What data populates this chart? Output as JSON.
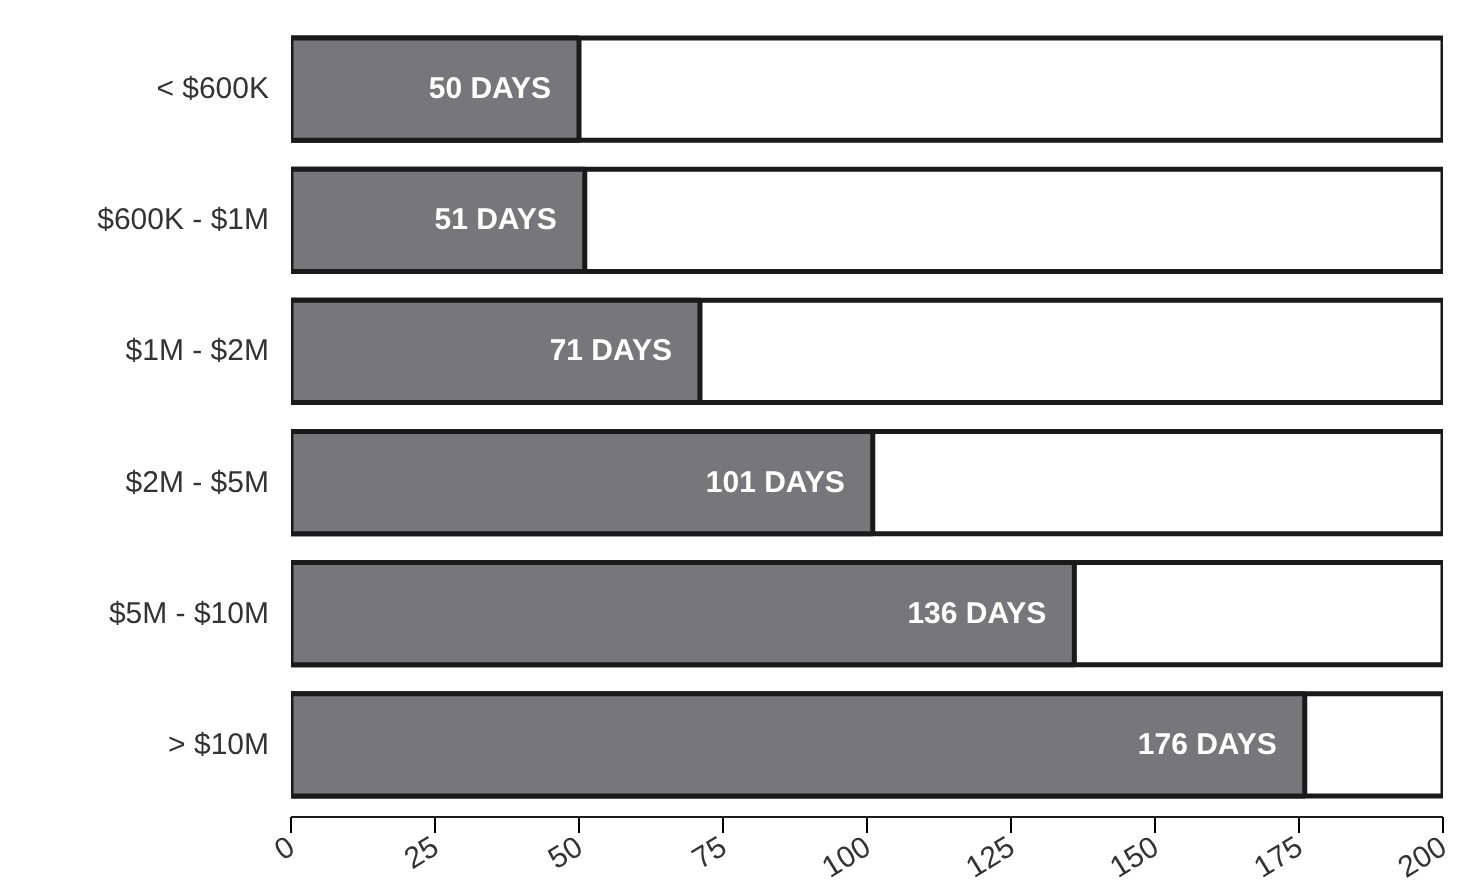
{
  "chart_data": {
    "type": "bar",
    "orientation": "horizontal",
    "categories": [
      "< $600K",
      "$600K - $1M",
      "$1M - $2M",
      "$2M - $5M",
      "$5M - $10M",
      "> $10M"
    ],
    "values": [
      50,
      51,
      71,
      101,
      136,
      176
    ],
    "value_labels": [
      "50 DAYS",
      "51 DAYS",
      "71 DAYS",
      "101 DAYS",
      "136 DAYS",
      "176 DAYS"
    ],
    "color": "#77777b",
    "xlim": [
      0,
      200
    ],
    "xticks": [
      0,
      25,
      50,
      75,
      100,
      125,
      150,
      175,
      200
    ],
    "grid": false,
    "tick_labels": "xy"
  }
}
